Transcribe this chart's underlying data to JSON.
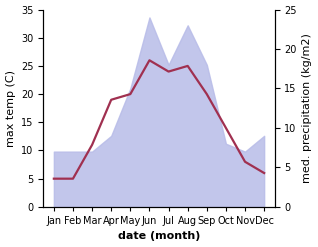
{
  "months": [
    "Jan",
    "Feb",
    "Mar",
    "Apr",
    "May",
    "Jun",
    "Jul",
    "Aug",
    "Sep",
    "Oct",
    "Nov",
    "Dec"
  ],
  "temperature": [
    5,
    5,
    11,
    19,
    20,
    26,
    24,
    25,
    20,
    14,
    8,
    6
  ],
  "precipitation": [
    7,
    7,
    7,
    9,
    15,
    24,
    18,
    23,
    18,
    8,
    7,
    9
  ],
  "temp_color": "#a03050",
  "precip_fill_color": "#b8bce8",
  "precip_alpha": 0.85,
  "temp_ylim": [
    0,
    35
  ],
  "precip_ylim": [
    0,
    25
  ],
  "temp_yticks": [
    0,
    5,
    10,
    15,
    20,
    25,
    30,
    35
  ],
  "precip_yticks": [
    0,
    5,
    10,
    15,
    20,
    25
  ],
  "xlabel": "date (month)",
  "ylabel_left": "max temp (C)",
  "ylabel_right": "med. precipitation (kg/m2)",
  "label_fontsize": 8,
  "tick_fontsize": 7
}
